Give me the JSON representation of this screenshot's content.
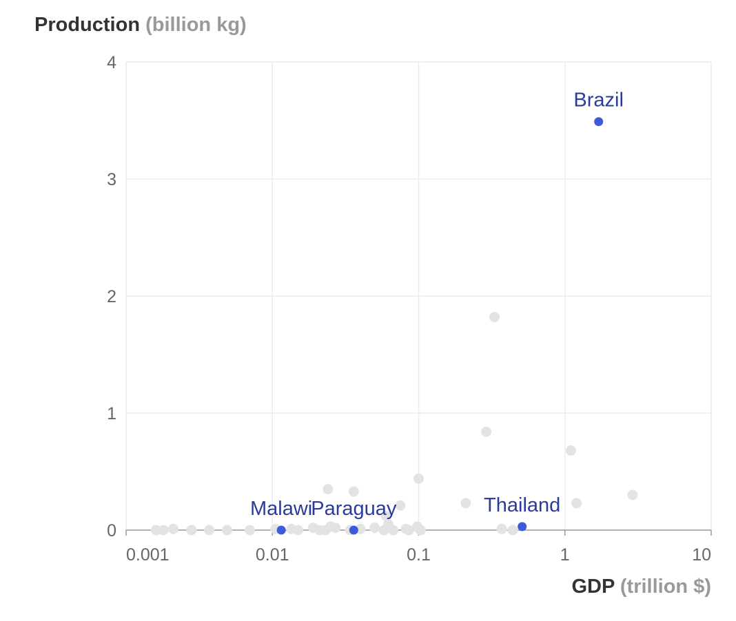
{
  "chart_data": {
    "type": "scatter",
    "ylabel": "Production",
    "yunit": "(billion kg)",
    "xlabel": "GDP",
    "xunit": "(trillion $)",
    "x_scale": "log",
    "xlim": [
      0.001,
      10
    ],
    "ylim": [
      0,
      4
    ],
    "x_ticks": [
      {
        "value": 0.001,
        "label": "0.001"
      },
      {
        "value": 0.01,
        "label": "0.01"
      },
      {
        "value": 0.1,
        "label": "0.1"
      },
      {
        "value": 1,
        "label": "1"
      },
      {
        "value": 10,
        "label": "10"
      }
    ],
    "y_ticks": [
      {
        "value": 0,
        "label": "0"
      },
      {
        "value": 1,
        "label": "1"
      },
      {
        "value": 2,
        "label": "2"
      },
      {
        "value": 3,
        "label": "3"
      },
      {
        "value": 4,
        "label": "4"
      }
    ],
    "grid": true,
    "highlight_color": "#3d5bd9",
    "label_color": "#2b3b99",
    "background_point_color": "#e3e3e3",
    "highlighted": [
      {
        "label": "Brazil",
        "x": 1.7,
        "y": 3.49
      },
      {
        "label": "Thailand",
        "x": 0.51,
        "y": 0.03
      },
      {
        "label": "Paraguay",
        "x": 0.036,
        "y": 0.0
      },
      {
        "label": "Malawi",
        "x": 0.0115,
        "y": 0.0
      }
    ],
    "other_points": [
      {
        "x": 0.33,
        "y": 1.82
      },
      {
        "x": 0.29,
        "y": 0.84
      },
      {
        "x": 1.1,
        "y": 0.68
      },
      {
        "x": 2.9,
        "y": 0.3
      },
      {
        "x": 0.1,
        "y": 0.44
      },
      {
        "x": 0.024,
        "y": 0.35
      },
      {
        "x": 0.036,
        "y": 0.33
      },
      {
        "x": 0.21,
        "y": 0.23
      },
      {
        "x": 1.2,
        "y": 0.23
      },
      {
        "x": 0.075,
        "y": 0.21
      },
      {
        "x": 0.06,
        "y": 0.12
      },
      {
        "x": 0.0016,
        "y": 0.0
      },
      {
        "x": 0.0018,
        "y": 0.0
      },
      {
        "x": 0.0021,
        "y": 0.01
      },
      {
        "x": 0.0028,
        "y": 0.0
      },
      {
        "x": 0.0037,
        "y": 0.0
      },
      {
        "x": 0.0049,
        "y": 0.0
      },
      {
        "x": 0.007,
        "y": 0.0
      },
      {
        "x": 0.0105,
        "y": 0.01
      },
      {
        "x": 0.0135,
        "y": 0.01
      },
      {
        "x": 0.015,
        "y": 0.0
      },
      {
        "x": 0.019,
        "y": 0.02
      },
      {
        "x": 0.021,
        "y": 0.0
      },
      {
        "x": 0.023,
        "y": 0.0
      },
      {
        "x": 0.025,
        "y": 0.03
      },
      {
        "x": 0.027,
        "y": 0.02
      },
      {
        "x": 0.034,
        "y": 0.0
      },
      {
        "x": 0.04,
        "y": 0.01
      },
      {
        "x": 0.05,
        "y": 0.02
      },
      {
        "x": 0.058,
        "y": 0.0
      },
      {
        "x": 0.062,
        "y": 0.05
      },
      {
        "x": 0.067,
        "y": 0.0
      },
      {
        "x": 0.082,
        "y": 0.01
      },
      {
        "x": 0.086,
        "y": 0.0
      },
      {
        "x": 0.098,
        "y": 0.03
      },
      {
        "x": 0.103,
        "y": 0.0
      },
      {
        "x": 0.37,
        "y": 0.01
      },
      {
        "x": 0.44,
        "y": 0.0
      }
    ]
  }
}
